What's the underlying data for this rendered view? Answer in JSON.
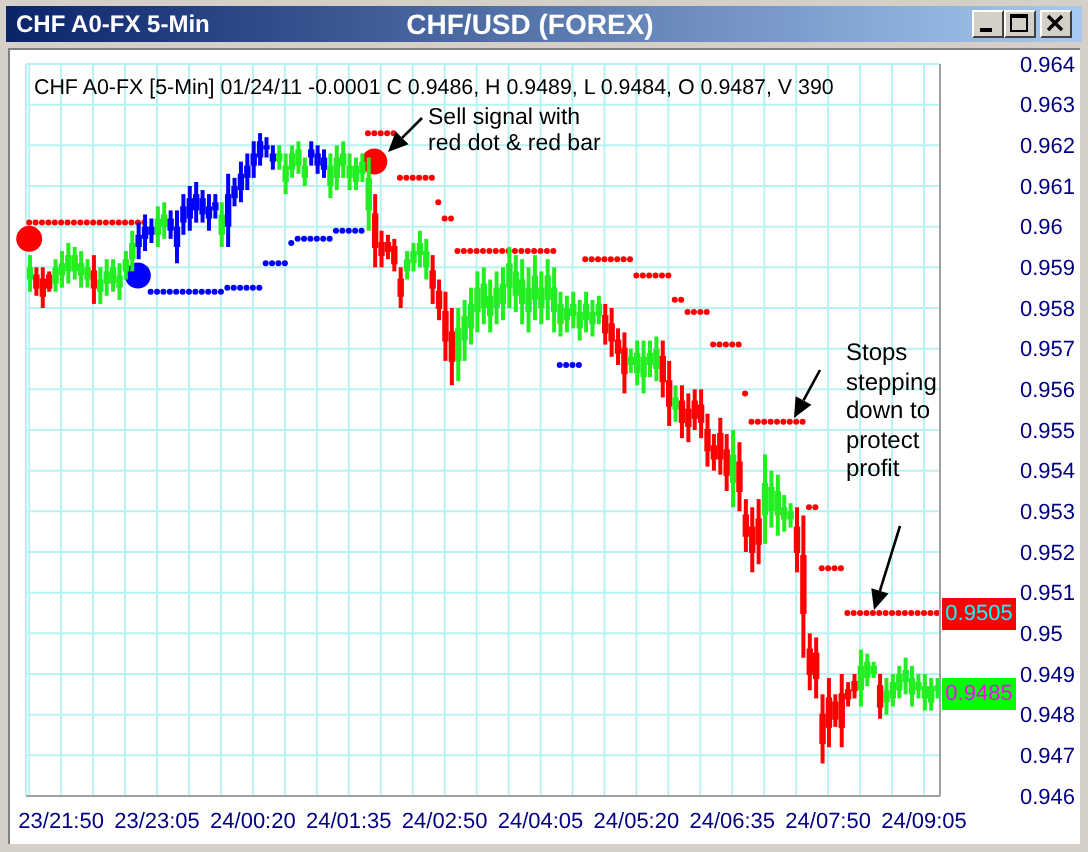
{
  "chart_data": {
    "type": "candlestick",
    "title": "CHF/USD (FOREX)",
    "subtitle": "CHF A0-FX [5-Min] 01/24/11 -0.0001 C 0.9486, H 0.9489, L 0.9484, O 0.9487, V 390",
    "categories": [
      null,
      null,
      null,
      null,
      null,
      "23/21:50",
      null,
      null,
      null,
      null,
      null,
      null,
      null,
      null,
      null,
      null,
      null,
      null,
      null,
      null,
      "23/23:05",
      null,
      null,
      null,
      null,
      null,
      null,
      null,
      null,
      null,
      null,
      null,
      null,
      null,
      null,
      "24/00:20",
      null,
      null,
      null,
      null,
      null,
      null,
      null,
      null,
      null,
      null,
      null,
      null,
      null,
      null,
      "24/01:35",
      null,
      null,
      null,
      null,
      null,
      null,
      null,
      null,
      null,
      null,
      null,
      null,
      null,
      null,
      "24/02:50",
      null,
      null,
      null,
      null,
      null,
      null,
      null,
      null,
      null,
      null,
      null,
      null,
      null,
      null,
      "24/04:05",
      null,
      null,
      null,
      null,
      null,
      null,
      null,
      null,
      null,
      null,
      null,
      null,
      null,
      null,
      "24/05:20",
      null,
      null,
      null,
      null,
      null,
      null,
      null,
      null,
      null,
      null,
      null,
      null,
      null,
      null,
      "24/06:35",
      null,
      null,
      null,
      null,
      null,
      null,
      null,
      null,
      null,
      null,
      null,
      null,
      null,
      null,
      "24/07:50",
      null,
      null,
      null,
      null,
      null,
      null,
      null,
      null,
      null,
      null,
      null,
      null,
      null,
      null,
      "24/09:05",
      null,
      null
    ],
    "ohlc": [
      [
        0.9587,
        0.9593,
        0.9584,
        0.959
      ],
      [
        0.9588,
        0.959,
        0.9583,
        0.9585
      ],
      [
        0.9587,
        0.959,
        0.958,
        0.9583
      ],
      [
        0.9588,
        0.9589,
        0.9584,
        0.9585
      ],
      [
        0.9586,
        0.9592,
        0.9584,
        0.959
      ],
      [
        0.9588,
        0.9594,
        0.9585,
        0.9591
      ],
      [
        0.9589,
        0.9596,
        0.9586,
        0.9593
      ],
      [
        0.9589,
        0.9595,
        0.9587,
        0.9593
      ],
      [
        0.9588,
        0.9594,
        0.9585,
        0.9591
      ],
      [
        0.9587,
        0.9592,
        0.9585,
        0.959
      ],
      [
        0.9589,
        0.9593,
        0.9581,
        0.9585
      ],
      [
        0.9584,
        0.959,
        0.9581,
        0.9587
      ],
      [
        0.9586,
        0.9592,
        0.9583,
        0.9589
      ],
      [
        0.9586,
        0.9592,
        0.9584,
        0.959
      ],
      [
        0.9585,
        0.9591,
        0.9582,
        0.9588
      ],
      [
        0.9589,
        0.9594,
        0.9587,
        0.9592
      ],
      [
        0.9592,
        0.9599,
        0.9589,
        0.9596
      ],
      [
        0.9595,
        0.9601,
        0.9592,
        0.9598
      ],
      [
        0.9597,
        0.9603,
        0.9594,
        0.96
      ],
      [
        0.9598,
        0.9602,
        0.9596,
        0.96
      ],
      [
        0.9598,
        0.9605,
        0.9595,
        0.9602
      ],
      [
        0.96,
        0.9606,
        0.9597,
        0.9603
      ],
      [
        0.9599,
        0.9604,
        0.9597,
        0.9602
      ],
      [
        0.9595,
        0.9604,
        0.9591,
        0.96
      ],
      [
        0.9601,
        0.9608,
        0.9598,
        0.9605
      ],
      [
        0.9602,
        0.961,
        0.9599,
        0.9607
      ],
      [
        0.9604,
        0.9611,
        0.9601,
        0.9608
      ],
      [
        0.9603,
        0.9609,
        0.9601,
        0.9607
      ],
      [
        0.9602,
        0.9608,
        0.9599,
        0.9605
      ],
      [
        0.9604,
        0.9608,
        0.9602,
        0.9606
      ],
      [
        0.9598,
        0.9606,
        0.9595,
        0.9603
      ],
      [
        0.96,
        0.9613,
        0.9595,
        0.9608
      ],
      [
        0.9607,
        0.9612,
        0.9605,
        0.961
      ],
      [
        0.9609,
        0.9616,
        0.9606,
        0.9613
      ],
      [
        0.9612,
        0.9618,
        0.9609,
        0.9615
      ],
      [
        0.9615,
        0.9621,
        0.9612,
        0.9618
      ],
      [
        0.9617,
        0.9623,
        0.9615,
        0.9621
      ],
      [
        0.9619,
        0.9622,
        0.9617,
        0.962
      ],
      [
        0.9616,
        0.962,
        0.9614,
        0.9618
      ],
      [
        0.9616,
        0.962,
        0.9614,
        0.9618
      ],
      [
        0.9611,
        0.9618,
        0.9608,
        0.9615
      ],
      [
        0.9614,
        0.962,
        0.9612,
        0.9618
      ],
      [
        0.9615,
        0.9621,
        0.9613,
        0.9619
      ],
      [
        0.9612,
        0.9617,
        0.961,
        0.9615
      ],
      [
        0.9617,
        0.9621,
        0.9615,
        0.9619
      ],
      [
        0.9615,
        0.962,
        0.9613,
        0.9618
      ],
      [
        0.9614,
        0.9619,
        0.9612,
        0.9617
      ],
      [
        0.961,
        0.9618,
        0.9607,
        0.9615
      ],
      [
        0.9612,
        0.962,
        0.9609,
        0.9617
      ],
      [
        0.9615,
        0.9621,
        0.9612,
        0.9618
      ],
      [
        0.9612,
        0.9618,
        0.9609,
        0.9615
      ],
      [
        0.9611,
        0.9617,
        0.9609,
        0.9615
      ],
      [
        0.9613,
        0.9618,
        0.9611,
        0.9616
      ],
      [
        0.9604,
        0.9617,
        0.9599,
        0.9612
      ],
      [
        0.9603,
        0.9608,
        0.959,
        0.9595
      ],
      [
        0.9596,
        0.9599,
        0.959,
        0.9593
      ],
      [
        0.9596,
        0.9598,
        0.9592,
        0.9594
      ],
      [
        0.9595,
        0.9597,
        0.9589,
        0.9591
      ],
      [
        0.9587,
        0.959,
        0.958,
        0.9583
      ],
      [
        0.9589,
        0.9594,
        0.9587,
        0.9592
      ],
      [
        0.9591,
        0.9596,
        0.9589,
        0.9594
      ],
      [
        0.9593,
        0.9599,
        0.959,
        0.9596
      ],
      [
        0.959,
        0.9597,
        0.9587,
        0.9594
      ],
      [
        0.9589,
        0.9593,
        0.9581,
        0.9585
      ],
      [
        0.9584,
        0.9587,
        0.9577,
        0.958
      ],
      [
        0.9579,
        0.9584,
        0.9567,
        0.9572
      ],
      [
        0.9574,
        0.958,
        0.9561,
        0.9567
      ],
      [
        0.9567,
        0.958,
        0.9562,
        0.9575
      ],
      [
        0.9572,
        0.9582,
        0.9567,
        0.9578
      ],
      [
        0.9575,
        0.9585,
        0.9571,
        0.9581
      ],
      [
        0.9579,
        0.9589,
        0.9574,
        0.9585
      ],
      [
        0.958,
        0.959,
        0.9576,
        0.9586
      ],
      [
        0.9578,
        0.9587,
        0.9574,
        0.9583
      ],
      [
        0.958,
        0.9589,
        0.9576,
        0.9585
      ],
      [
        0.9581,
        0.959,
        0.9577,
        0.9586
      ],
      [
        0.9585,
        0.9595,
        0.958,
        0.9591
      ],
      [
        0.9583,
        0.9593,
        0.9579,
        0.9589
      ],
      [
        0.9581,
        0.9592,
        0.9576,
        0.9587
      ],
      [
        0.9579,
        0.959,
        0.9574,
        0.9585
      ],
      [
        0.9582,
        0.9593,
        0.9577,
        0.9588
      ],
      [
        0.958,
        0.9589,
        0.9576,
        0.9585
      ],
      [
        0.9582,
        0.9592,
        0.9577,
        0.9588
      ],
      [
        0.9579,
        0.959,
        0.9574,
        0.9585
      ],
      [
        0.9576,
        0.9584,
        0.9573,
        0.9581
      ],
      [
        0.9577,
        0.9583,
        0.9574,
        0.958
      ],
      [
        0.9578,
        0.9584,
        0.9575,
        0.9581
      ],
      [
        0.9575,
        0.9582,
        0.9572,
        0.9579
      ],
      [
        0.9577,
        0.9584,
        0.9574,
        0.9581
      ],
      [
        0.9576,
        0.9582,
        0.9573,
        0.9579
      ],
      [
        0.9578,
        0.9583,
        0.9576,
        0.9581
      ],
      [
        0.9578,
        0.9581,
        0.9571,
        0.9574
      ],
      [
        0.9576,
        0.958,
        0.9568,
        0.9572
      ],
      [
        0.9572,
        0.9575,
        0.9566,
        0.9569
      ],
      [
        0.957,
        0.9574,
        0.9559,
        0.9564
      ],
      [
        0.9566,
        0.957,
        0.9564,
        0.9568
      ],
      [
        0.9564,
        0.9572,
        0.9561,
        0.9569
      ],
      [
        0.9563,
        0.9572,
        0.9559,
        0.9568
      ],
      [
        0.9566,
        0.9572,
        0.9563,
        0.9569
      ],
      [
        0.9565,
        0.9573,
        0.9562,
        0.957
      ],
      [
        0.9568,
        0.9572,
        0.9558,
        0.9562
      ],
      [
        0.9562,
        0.9567,
        0.9551,
        0.9556
      ],
      [
        0.9555,
        0.9561,
        0.9552,
        0.9558
      ],
      [
        0.9557,
        0.9561,
        0.9548,
        0.9552
      ],
      [
        0.9555,
        0.9559,
        0.9547,
        0.9551
      ],
      [
        0.9557,
        0.956,
        0.955,
        0.9553
      ],
      [
        0.9556,
        0.956,
        0.9548,
        0.9552
      ],
      [
        0.955,
        0.9554,
        0.9541,
        0.9545
      ],
      [
        0.9546,
        0.9549,
        0.954,
        0.9543
      ],
      [
        0.9549,
        0.9553,
        0.9539,
        0.9543
      ],
      [
        0.9545,
        0.9549,
        0.9535,
        0.9539
      ],
      [
        0.9537,
        0.955,
        0.9531,
        0.9544
      ],
      [
        0.9542,
        0.9547,
        0.953,
        0.9535
      ],
      [
        0.9529,
        0.9533,
        0.952,
        0.9524
      ],
      [
        0.9526,
        0.9531,
        0.9515,
        0.952
      ],
      [
        0.9528,
        0.9533,
        0.9517,
        0.9522
      ],
      [
        0.9529,
        0.9544,
        0.9522,
        0.9537
      ],
      [
        0.953,
        0.954,
        0.9526,
        0.9536
      ],
      [
        0.9529,
        0.9539,
        0.9524,
        0.9535
      ],
      [
        0.9528,
        0.9534,
        0.9525,
        0.9531
      ],
      [
        0.9528,
        0.9532,
        0.9526,
        0.953
      ],
      [
        0.9526,
        0.9531,
        0.9515,
        0.952
      ],
      [
        0.9519,
        0.9529,
        0.9494,
        0.9505
      ],
      [
        0.9496,
        0.95,
        0.9486,
        0.949
      ],
      [
        0.9495,
        0.9499,
        0.9484,
        0.9489
      ],
      [
        0.948,
        0.9485,
        0.9468,
        0.9473
      ],
      [
        0.9484,
        0.9489,
        0.9472,
        0.9477
      ],
      [
        0.9483,
        0.9485,
        0.9477,
        0.9479
      ],
      [
        0.9485,
        0.949,
        0.9472,
        0.9477
      ],
      [
        0.9486,
        0.9488,
        0.9482,
        0.9484
      ],
      [
        0.9488,
        0.949,
        0.9484,
        0.9486
      ],
      [
        0.9486,
        0.9496,
        0.9482,
        0.9492
      ],
      [
        0.9489,
        0.9495,
        0.9487,
        0.9493
      ],
      [
        0.949,
        0.9493,
        0.9489,
        0.9492
      ],
      [
        0.9487,
        0.949,
        0.9479,
        0.9482
      ],
      [
        0.9483,
        0.9489,
        0.948,
        0.9486
      ],
      [
        0.9484,
        0.949,
        0.9482,
        0.9488
      ],
      [
        0.9486,
        0.9492,
        0.9484,
        0.949
      ],
      [
        0.9488,
        0.9494,
        0.9485,
        0.9491
      ],
      [
        0.9485,
        0.9492,
        0.9482,
        0.9489
      ],
      [
        0.9486,
        0.949,
        0.9484,
        0.9488
      ],
      [
        0.9484,
        0.949,
        0.9481,
        0.9487
      ],
      [
        0.9483,
        0.9489,
        0.9481,
        0.9487
      ],
      [
        0.9487,
        0.9489,
        0.9484,
        0.9486
      ]
    ],
    "colors": [
      "#22ee22",
      "#ff0000",
      "#ff0000",
      "#ff0000",
      "#22ee22",
      "#22ee22",
      "#22ee22",
      "#22ee22",
      "#22ee22",
      "#22ee22",
      "#ff0000",
      "#22ee22",
      "#22ee22",
      "#22ee22",
      "#22ee22",
      "#22ee22",
      "#22ee22",
      "#0000ff",
      "#0000ff",
      "#0000ff",
      "#22ee22",
      "#22ee22",
      "#0000ff",
      "#0000ff",
      "#0000ff",
      "#0000ff",
      "#0000ff",
      "#0000ff",
      "#0000ff",
      "#0000ff",
      "#22ee22",
      "#0000ff",
      "#0000ff",
      "#0000ff",
      "#0000ff",
      "#0000ff",
      "#0000ff",
      "#0000ff",
      "#0000ff",
      "#22ee22",
      "#22ee22",
      "#22ee22",
      "#22ee22",
      "#22ee22",
      "#0000ff",
      "#0000ff",
      "#0000ff",
      "#22ee22",
      "#22ee22",
      "#22ee22",
      "#22ee22",
      "#22ee22",
      "#22ee22",
      "#22ee22",
      "#ff0000",
      "#ff0000",
      "#ff0000",
      "#ff0000",
      "#ff0000",
      "#22ee22",
      "#22ee22",
      "#22ee22",
      "#22ee22",
      "#ff0000",
      "#ff0000",
      "#ff0000",
      "#ff0000",
      "#22ee22",
      "#22ee22",
      "#22ee22",
      "#22ee22",
      "#22ee22",
      "#22ee22",
      "#22ee22",
      "#22ee22",
      "#22ee22",
      "#22ee22",
      "#22ee22",
      "#22ee22",
      "#22ee22",
      "#22ee22",
      "#22ee22",
      "#22ee22",
      "#22ee22",
      "#22ee22",
      "#22ee22",
      "#22ee22",
      "#22ee22",
      "#22ee22",
      "#22ee22",
      "#ff0000",
      "#ff0000",
      "#ff0000",
      "#ff0000",
      "#22ee22",
      "#22ee22",
      "#22ee22",
      "#22ee22",
      "#22ee22",
      "#ff0000",
      "#ff0000",
      "#22ee22",
      "#ff0000",
      "#ff0000",
      "#ff0000",
      "#ff0000",
      "#ff0000",
      "#ff0000",
      "#ff0000",
      "#ff0000",
      "#22ee22",
      "#ff0000",
      "#ff0000",
      "#ff0000",
      "#ff0000",
      "#22ee22",
      "#22ee22",
      "#22ee22",
      "#22ee22",
      "#22ee22",
      "#ff0000",
      "#ff0000",
      "#ff0000",
      "#ff0000",
      "#ff0000",
      "#ff0000",
      "#ff0000",
      "#ff0000",
      "#ff0000",
      "#ff0000",
      "#22ee22",
      "#22ee22",
      "#22ee22",
      "#ff0000",
      "#22ee22",
      "#22ee22",
      "#22ee22",
      "#22ee22",
      "#22ee22",
      "#22ee22",
      "#22ee22",
      "#22ee22",
      "#22ee22"
    ],
    "series": [
      {
        "type": "scatter",
        "color": "#ff0000",
        "values": [
          0.9601,
          0.9601,
          0.9601,
          0.9601,
          0.9601,
          0.9601,
          0.9601,
          0.9601,
          0.9601,
          0.9601,
          0.9601,
          0.9601,
          0.9601,
          0.9601,
          0.9601,
          0.9601,
          0.9601,
          0.9601,
          0.9601,
          null,
          null,
          null,
          null,
          null,
          null,
          null,
          null,
          null,
          null,
          null,
          null,
          null,
          null,
          null,
          null,
          null,
          null,
          null,
          null,
          null,
          null,
          null,
          null,
          null,
          null,
          null,
          null,
          null,
          null,
          null,
          null,
          null,
          null,
          0.9623,
          0.9623,
          0.9623,
          0.9623,
          0.9623,
          0.9612,
          0.9612,
          0.9612,
          0.9612,
          0.9612,
          0.9612,
          0.9606,
          0.9602,
          0.9602,
          0.9594,
          0.9594,
          0.9594,
          0.9594,
          0.9594,
          0.9594,
          0.9594,
          0.9594,
          0.9594,
          0.9594,
          0.9594,
          0.9594,
          0.9594,
          0.9594,
          0.9594,
          0.9594,
          null,
          null,
          null,
          null,
          0.9592,
          0.9592,
          0.9592,
          0.9592,
          0.9592,
          0.9592,
          0.9592,
          0.9592,
          0.9588,
          0.9588,
          0.9588,
          0.9588,
          0.9588,
          0.9588,
          0.9582,
          0.9582,
          0.9579,
          0.9579,
          0.9579,
          0.9579,
          0.9571,
          0.9571,
          0.9571,
          0.9571,
          0.9571,
          0.9559,
          0.9552,
          0.9552,
          0.9552,
          0.9552,
          0.9552,
          0.9552,
          0.9552,
          0.9552,
          0.9552,
          0.9531,
          0.9531,
          0.9516,
          0.9516,
          0.9516,
          0.9516,
          0.9505,
          0.9505,
          0.9505,
          0.9505,
          0.9505,
          0.9505,
          0.9505,
          0.9505,
          0.9505,
          0.9505,
          0.9505,
          0.9505,
          0.9505,
          0.9505,
          0.9505
        ]
      },
      {
        "type": "scatter",
        "color": "#0000ff",
        "values": [
          null,
          null,
          null,
          null,
          null,
          null,
          null,
          null,
          null,
          null,
          null,
          null,
          null,
          null,
          null,
          null,
          null,
          null,
          null,
          0.9584,
          0.9584,
          0.9584,
          0.9584,
          0.9584,
          0.9584,
          0.9584,
          0.9584,
          0.9584,
          0.9584,
          0.9584,
          0.9584,
          0.9585,
          0.9585,
          0.9585,
          0.9585,
          0.9585,
          0.9585,
          0.9591,
          0.9591,
          0.9591,
          0.9591,
          0.9596,
          0.9597,
          0.9597,
          0.9597,
          0.9597,
          0.9597,
          0.9597,
          0.9599,
          0.9599,
          0.9599,
          0.9599,
          0.9599,
          null,
          null,
          null,
          null,
          null,
          null,
          null,
          null,
          null,
          null,
          null,
          null,
          null,
          null,
          null,
          null,
          null,
          null,
          null,
          null,
          null,
          null,
          null,
          null,
          null,
          null,
          null,
          null,
          null,
          null,
          0.9566,
          0.9566,
          0.9566,
          0.9566,
          null,
          null,
          null,
          null,
          null,
          null,
          null,
          null,
          null,
          null,
          null,
          null,
          null,
          null,
          null,
          null,
          null,
          null,
          null,
          null,
          null,
          null,
          null,
          null,
          null,
          null,
          null,
          null,
          null,
          null,
          null,
          null,
          null,
          null,
          null,
          null,
          null,
          null,
          null,
          null,
          null,
          null,
          null,
          null,
          null,
          null,
          null,
          null,
          null,
          null,
          null,
          null,
          null,
          null,
          null,
          null
        ]
      },
      {
        "type": "scatter",
        "color": "#ff0000",
        "values": [
          0.9597,
          null,
          null,
          null,
          null,
          null,
          null,
          null,
          null,
          null,
          null,
          null,
          null,
          null,
          null,
          null,
          null,
          null,
          null,
          null,
          null,
          null,
          null,
          null,
          null,
          null,
          null,
          null,
          null,
          null,
          null,
          null,
          null,
          null,
          null,
          null,
          null,
          null,
          null,
          null,
          null,
          null,
          null,
          null,
          null,
          null,
          null,
          null,
          null,
          null,
          null,
          null,
          null,
          null,
          0.9616,
          null,
          null,
          null,
          null,
          null,
          null,
          null,
          null,
          null,
          null,
          null,
          null,
          null,
          null,
          null,
          null,
          null,
          null,
          null,
          null,
          null,
          null,
          null,
          null,
          null,
          null,
          null,
          null,
          null,
          null,
          null,
          null,
          null,
          null,
          null,
          null,
          null,
          null,
          null,
          null,
          null,
          null,
          null,
          null,
          null,
          null,
          null,
          null,
          null,
          null,
          null,
          null,
          null,
          null,
          null,
          null,
          null,
          null,
          null,
          null,
          null,
          null,
          null,
          null,
          null,
          null,
          null,
          null,
          null,
          null,
          null,
          null,
          null,
          null,
          null,
          null,
          null,
          null,
          null,
          null,
          null,
          null,
          null,
          null,
          null,
          null,
          null,
          null
        ]
      },
      {
        "type": "scatter",
        "color": "#0000ff",
        "values": [
          null,
          null,
          null,
          null,
          null,
          null,
          null,
          null,
          null,
          null,
          null,
          null,
          null,
          null,
          null,
          null,
          null,
          0.9588,
          null,
          null,
          null,
          null,
          null,
          null,
          null,
          null,
          null,
          null,
          null,
          null,
          null,
          null,
          null,
          null,
          null,
          null,
          null,
          null,
          null,
          null,
          null,
          null,
          null,
          null,
          null,
          null,
          null,
          null,
          null,
          null,
          null,
          null,
          null,
          null,
          null,
          null,
          null,
          null,
          null,
          null,
          null,
          null,
          null,
          null,
          null,
          null,
          null,
          null,
          null,
          null,
          null,
          null,
          null,
          null,
          null,
          null,
          null,
          null,
          null,
          null,
          null,
          null,
          null,
          null,
          null,
          null,
          null,
          null,
          null,
          null,
          null,
          null,
          null,
          null,
          null,
          null,
          null,
          null,
          null,
          null,
          null,
          null,
          null,
          null,
          null,
          null,
          null,
          null,
          null,
          null,
          null,
          null,
          null,
          null,
          null,
          null,
          null,
          null,
          null,
          null,
          null,
          null,
          null,
          null,
          null,
          null,
          null,
          null,
          null,
          null,
          null,
          null,
          null,
          null,
          null,
          null,
          null,
          null,
          null,
          null,
          null,
          null,
          null
        ]
      }
    ],
    "ylim": [
      0.946,
      0.964
    ],
    "yticks": [
      0.946,
      0.947,
      0.948,
      0.949,
      0.95,
      0.951,
      0.952,
      0.953,
      0.954,
      0.955,
      0.956,
      0.957,
      0.958,
      0.959,
      0.96,
      0.961,
      0.962,
      0.963,
      0.964
    ],
    "grid": true,
    "marker": "circle",
    "annotations": [
      "CHF A0-FX 5-Min",
      "Sell signal with red dot & red bar",
      "Stops stepping down to protect profit",
      {
        "text": "0.9505",
        "y": 0.9505
      },
      {
        "text": "0.9485",
        "y": 0.9485
      }
    ]
  }
}
